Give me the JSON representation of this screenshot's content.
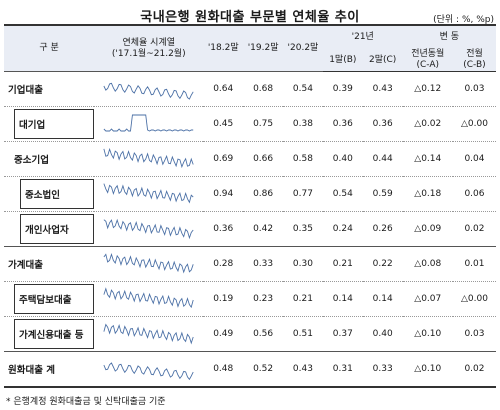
{
  "title": "국내은행 원화대출 부문별 연체율 추이",
  "unit": "(단위 : %, %p)",
  "header": {
    "category": "구  분",
    "series_label_1": "연체율 시계열",
    "series_label_2": "('17.1월~21.2월)",
    "y18": "'18.2말",
    "y19": "'19.2말",
    "y20": "'20.2말",
    "y21": "'21년",
    "m1": "1말(B)",
    "m2": "2말(C)",
    "change": "변  동",
    "yoy": "전년동월",
    "yoy_sub": "(C-A)",
    "mom": "전월",
    "mom_sub": "(C-B)"
  },
  "rows": [
    {
      "label": "기업대출",
      "v18": "0.64",
      "v19": "0.68",
      "v20": "0.54",
      "b": "0.39",
      "c": "0.43",
      "yoy": "△0.12",
      "mom": "0.03"
    },
    {
      "label": "대기업",
      "v18": "0.45",
      "v19": "0.75",
      "v20": "0.38",
      "b": "0.36",
      "c": "0.36",
      "yoy": "△0.02",
      "mom": "△0.00"
    },
    {
      "label": "중소기업",
      "v18": "0.69",
      "v19": "0.66",
      "v20": "0.58",
      "b": "0.40",
      "c": "0.44",
      "yoy": "△0.14",
      "mom": "0.04"
    },
    {
      "label": "중소법인",
      "v18": "0.94",
      "v19": "0.86",
      "v20": "0.77",
      "b": "0.54",
      "c": "0.59",
      "yoy": "△0.18",
      "mom": "0.06"
    },
    {
      "label": "개인사업자",
      "v18": "0.36",
      "v19": "0.42",
      "v20": "0.35",
      "b": "0.24",
      "c": "0.26",
      "yoy": "△0.09",
      "mom": "0.02"
    },
    {
      "label": "가계대출",
      "v18": "0.28",
      "v19": "0.33",
      "v20": "0.30",
      "b": "0.21",
      "c": "0.22",
      "yoy": "△0.08",
      "mom": "0.01"
    },
    {
      "label": "주택담보대출",
      "v18": "0.19",
      "v19": "0.23",
      "v20": "0.21",
      "b": "0.14",
      "c": "0.14",
      "yoy": "△0.07",
      "mom": "△0.00"
    },
    {
      "label": "가계신용대출 등",
      "v18": "0.49",
      "v19": "0.56",
      "v20": "0.51",
      "b": "0.37",
      "c": "0.40",
      "yoy": "△0.10",
      "mom": "0.03"
    },
    {
      "label": "원화대출 계",
      "v18": "0.48",
      "v19": "0.52",
      "v20": "0.43",
      "b": "0.31",
      "c": "0.33",
      "yoy": "△0.10",
      "mom": "0.02"
    }
  ],
  "footnote": "* 은행계정 원화대출금 및 신탁대출금 기준"
}
